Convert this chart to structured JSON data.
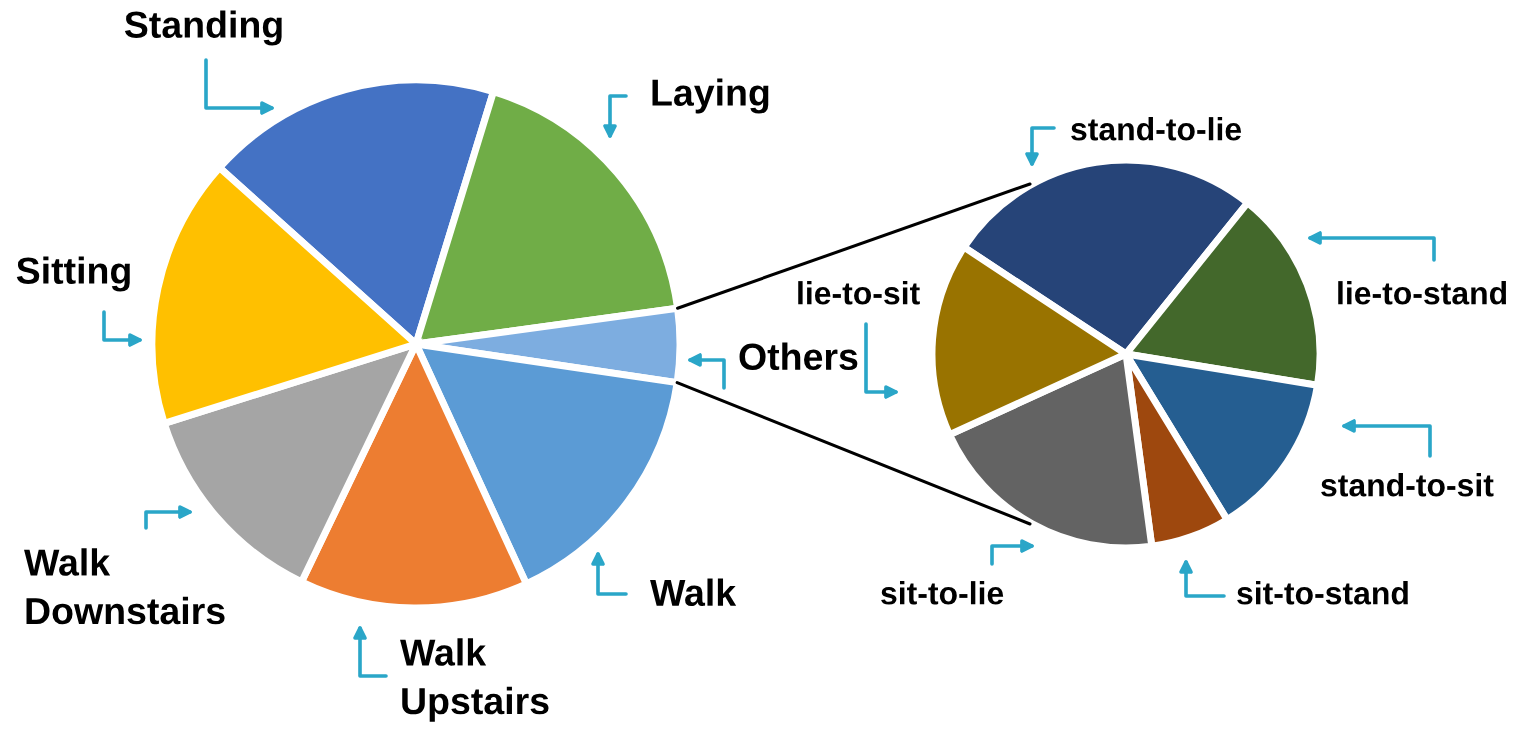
{
  "chart_data": [
    {
      "type": "pie",
      "categories": [
        "Standing",
        "Laying",
        "Others",
        "Walk",
        "Walk Upstairs",
        "Walk Downstairs",
        "Sitting"
      ],
      "values": [
        18.1,
        18.1,
        4.5,
        15.8,
        14.0,
        13.0,
        16.5
      ],
      "colors": [
        "#4472c4",
        "#70ad47",
        "#7dade0",
        "#5b9bd5",
        "#ed7d31",
        "#a5a5a5",
        "#ffc000"
      ]
    },
    {
      "type": "pie",
      "categories": [
        "stand-to-lie",
        "lie-to-stand",
        "stand-to-sit",
        "sit-to-stand",
        "sit-to-lie",
        "lie-to-sit"
      ],
      "values": [
        26.5,
        16.8,
        13.7,
        6.6,
        20.3,
        16.1
      ],
      "colors": [
        "#264478",
        "#43682b",
        "#255e91",
        "#9e480e",
        "#636363",
        "#997300"
      ]
    }
  ]
}
